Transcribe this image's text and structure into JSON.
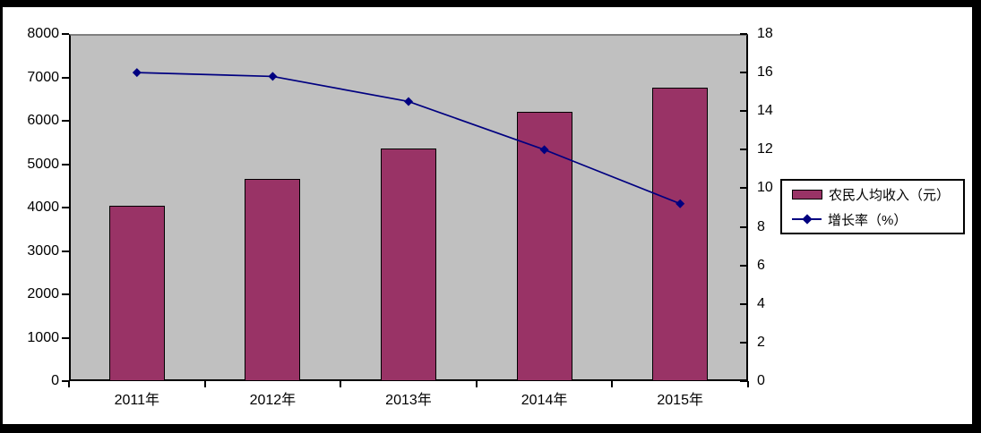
{
  "chart_data": {
    "type": "bar+line",
    "title": "",
    "categories": [
      "2011年",
      "2012年",
      "2013年",
      "2014年",
      "2015年"
    ],
    "series": [
      {
        "name": "农民人均收入（元）",
        "type": "bar",
        "axis": "left",
        "color": "#993366",
        "values": [
          4040,
          4670,
          5360,
          6200,
          6770
        ]
      },
      {
        "name": "增长率（%）",
        "type": "line",
        "axis": "right",
        "color": "#000080",
        "marker": "diamond",
        "values": [
          16.0,
          15.8,
          14.5,
          12.0,
          9.2
        ]
      }
    ],
    "left_axis": {
      "min": 0,
      "max": 8000,
      "step": 1000
    },
    "right_axis": {
      "min": 0,
      "max": 18,
      "step": 2
    },
    "plot_background": "#C0C0C0",
    "frame_color": "#000000",
    "grid": false,
    "legend": {
      "position": "right",
      "border": true
    }
  }
}
